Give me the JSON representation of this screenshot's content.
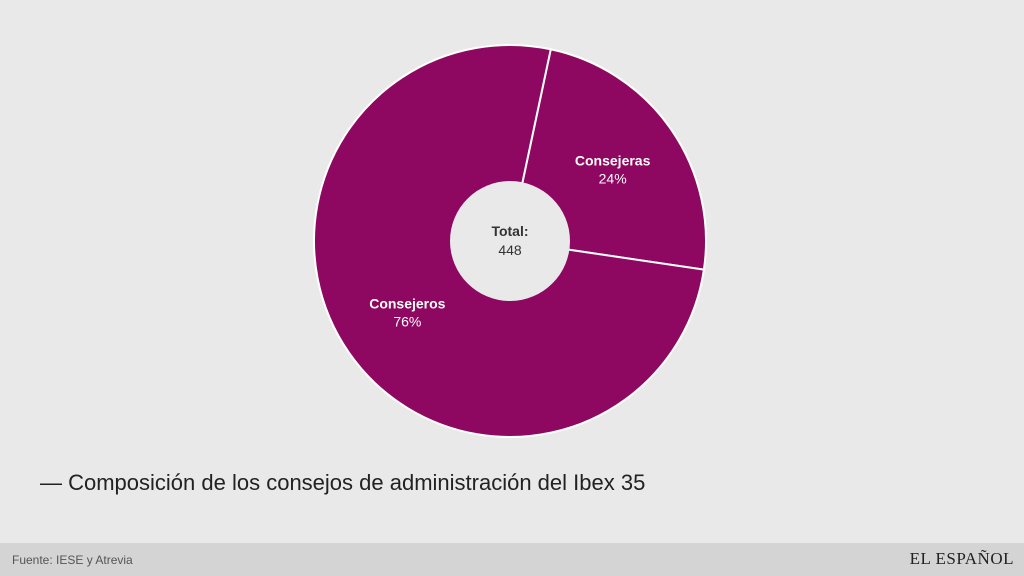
{
  "chart_data": {
    "type": "pie",
    "variant": "donut",
    "slices": [
      {
        "label": "Consejeras",
        "value": 24,
        "value_label": "24%",
        "color": "#8e0760"
      },
      {
        "label": "Consejeros",
        "value": 76,
        "value_label": "76%",
        "color": "#8e0760"
      }
    ],
    "center_title": "Total:",
    "center_value": "448",
    "separator_color": "#ffffff"
  },
  "caption": "— Composición de los consejos de administración del Ibex 35",
  "footer": {
    "source": "Fuente: IESE y Atrevia",
    "logo": "EL ESPAÑOL"
  },
  "colors": {
    "background": "#e9e9e9",
    "footer_bg": "#d4d4d4",
    "slice": "#8e0760"
  }
}
